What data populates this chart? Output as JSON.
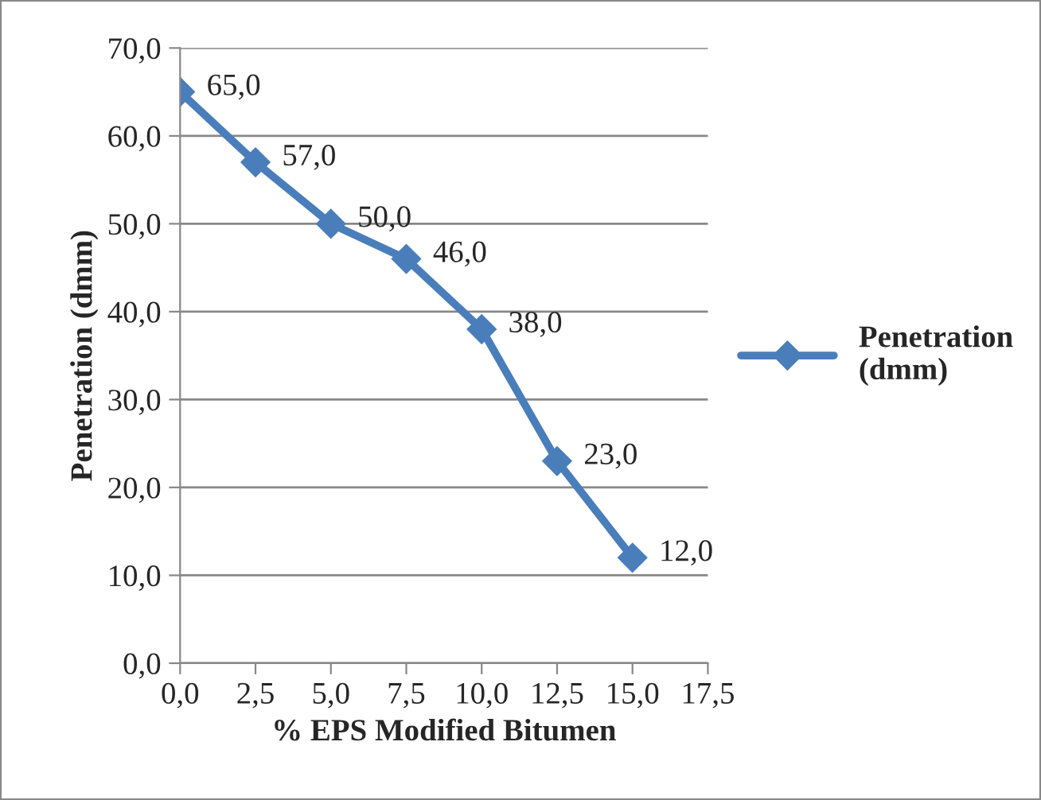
{
  "chart_data": {
    "type": "line",
    "xlabel": "% EPS Modified Bitumen",
    "ylabel": "Penetration (dmm)",
    "x": [
      0,
      2.5,
      5,
      7.5,
      10,
      12.5,
      15
    ],
    "series": [
      {
        "name": "Penetration\n(dmm)",
        "color": "#4a7ebb",
        "values": [
          65,
          57,
          50,
          46,
          38,
          23,
          12
        ],
        "value_labels": [
          "65,0",
          "57,0",
          "50,0",
          "46,0",
          "38,0",
          "23,0",
          "12,0"
        ]
      }
    ],
    "xlim": [
      0,
      17.5
    ],
    "xticks": [
      {
        "value": 0,
        "label": "0,0"
      },
      {
        "value": 2.5,
        "label": "2,5"
      },
      {
        "value": 5,
        "label": "5,0"
      },
      {
        "value": 7.5,
        "label": "7,5"
      },
      {
        "value": 10,
        "label": "10,0"
      },
      {
        "value": 12.5,
        "label": "12,5"
      },
      {
        "value": 15,
        "label": "15,0"
      },
      {
        "value": 17.5,
        "label": "17,5"
      }
    ],
    "ylim": [
      0,
      70
    ],
    "yticks": [
      {
        "value": 0,
        "label": "0,0"
      },
      {
        "value": 10,
        "label": "10,0"
      },
      {
        "value": 20,
        "label": "20,0"
      },
      {
        "value": 30,
        "label": "30,0"
      },
      {
        "value": 40,
        "label": "40,0"
      },
      {
        "value": 50,
        "label": "50,0"
      },
      {
        "value": 60,
        "label": "60,0"
      },
      {
        "value": 70,
        "label": "70,0"
      }
    ],
    "grid": "y",
    "legend": "right",
    "marker": "diamond",
    "line_style": "solid"
  }
}
